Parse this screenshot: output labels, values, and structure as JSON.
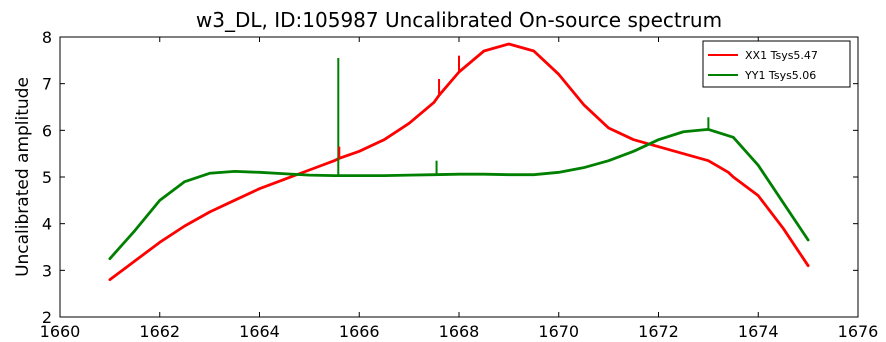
{
  "chart_data": {
    "type": "line",
    "title": "w3_DL, ID:105987 Uncalibrated On-source spectrum",
    "xlabel": "",
    "ylabel": "Uncalibrated amplitude",
    "xlim": [
      1660,
      1676
    ],
    "ylim": [
      2,
      8
    ],
    "xticks": [
      1660,
      1662,
      1664,
      1666,
      1668,
      1670,
      1672,
      1674,
      1676
    ],
    "yticks": [
      2,
      3,
      4,
      5,
      6,
      7,
      8
    ],
    "grid": false,
    "legend_position": "top-right",
    "series": [
      {
        "name": "XX1 Tsys5.47",
        "color": "#ff0000",
        "x": [
          1661.0,
          1661.5,
          1662.0,
          1662.5,
          1663.0,
          1663.5,
          1664.0,
          1664.5,
          1665.0,
          1665.5,
          1665.6,
          1666.0,
          1666.5,
          1667.0,
          1667.5,
          1667.6,
          1668.0,
          1668.5,
          1669.0,
          1669.5,
          1670.0,
          1670.5,
          1671.0,
          1671.5,
          1672.0,
          1672.5,
          1673.0,
          1673.4,
          1673.5,
          1674.0,
          1674.5,
          1675.0
        ],
        "y": [
          2.8,
          3.2,
          3.6,
          3.95,
          4.25,
          4.5,
          4.75,
          4.95,
          5.15,
          5.35,
          5.4,
          5.55,
          5.8,
          6.15,
          6.6,
          6.75,
          7.25,
          7.7,
          7.85,
          7.7,
          7.2,
          6.55,
          6.05,
          5.8,
          5.65,
          5.5,
          5.35,
          5.1,
          5.0,
          4.6,
          3.9,
          3.1
        ]
      },
      {
        "name": "YY1 Tsys5.06",
        "color": "#008000",
        "x": [
          1661.0,
          1661.5,
          1662.0,
          1662.5,
          1663.0,
          1663.5,
          1664.0,
          1664.5,
          1665.0,
          1665.5,
          1666.0,
          1666.5,
          1667.0,
          1667.5,
          1668.0,
          1668.5,
          1669.0,
          1669.5,
          1670.0,
          1670.5,
          1671.0,
          1671.5,
          1672.0,
          1672.5,
          1673.0,
          1673.5,
          1674.0,
          1674.5,
          1675.0
        ],
        "y": [
          3.25,
          3.85,
          4.5,
          4.9,
          5.08,
          5.12,
          5.1,
          5.07,
          5.04,
          5.03,
          5.03,
          5.03,
          5.04,
          5.05,
          5.06,
          5.06,
          5.05,
          5.05,
          5.1,
          5.2,
          5.35,
          5.55,
          5.8,
          5.97,
          6.02,
          5.85,
          5.25,
          4.45,
          3.65
        ]
      }
    ],
    "spikes": [
      {
        "series": "YY1 Tsys5.06",
        "x": 1665.58,
        "y_top": 7.55
      },
      {
        "series": "YY1 Tsys5.06",
        "x": 1667.55,
        "y_top": 5.35
      },
      {
        "series": "YY1 Tsys5.06",
        "x": 1673.0,
        "y_top": 6.28
      },
      {
        "series": "XX1 Tsys5.47",
        "x": 1665.6,
        "y_top": 5.65
      },
      {
        "series": "XX1 Tsys5.47",
        "x": 1667.6,
        "y_top": 7.1
      },
      {
        "series": "XX1 Tsys5.47",
        "x": 1668.0,
        "y_top": 7.6
      },
      {
        "series": "XX1 Tsys5.47",
        "x": 1673.4,
        "y_top": 5.12
      }
    ]
  }
}
